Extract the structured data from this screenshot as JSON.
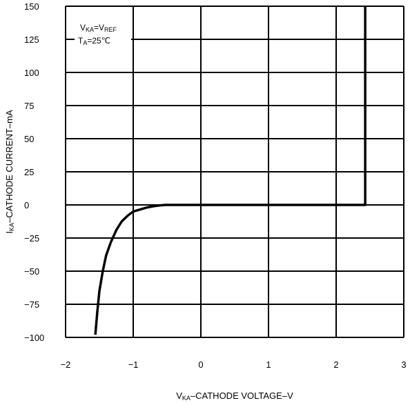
{
  "chart_data": {
    "type": "line",
    "title": "",
    "xlabel": {
      "main": "V",
      "sub": "KA",
      "rest": "–CATHODE VOLTAGE–V"
    },
    "ylabel": {
      "main": "I",
      "sub": "KA",
      "rest": "–CATHODE CURRENT–mA"
    },
    "xlim": [
      -2,
      3
    ],
    "ylim": [
      -100,
      150
    ],
    "x_ticks": [
      -2,
      -1,
      0,
      1,
      2,
      3
    ],
    "x_tick_labels": [
      "−2",
      "−1",
      "0",
      "1",
      "2",
      "3"
    ],
    "y_ticks": [
      150,
      125,
      100,
      75,
      50,
      25,
      0,
      -25,
      -50,
      -75,
      -100
    ],
    "y_tick_labels": [
      "150",
      "125",
      "100",
      "75",
      "50",
      "25",
      "0",
      "−25",
      "−50",
      "−75",
      "−100"
    ],
    "grid": true,
    "annotations": [
      {
        "parts": [
          {
            "t": "V",
            "sub": false
          },
          {
            "t": "KA",
            "sub": true
          },
          {
            "t": "=V",
            "sub": false
          },
          {
            "t": "REF",
            "sub": true
          }
        ]
      },
      {
        "parts": [
          {
            "t": "T",
            "sub": false
          },
          {
            "t": "A",
            "sub": true
          },
          {
            "t": "=25℃",
            "sub": false
          }
        ]
      }
    ],
    "series": [
      {
        "x": [
          -1.56,
          -1.53,
          -1.5,
          -1.45,
          -1.4,
          -1.33,
          -1.25,
          -1.17,
          -1.08,
          -1.0,
          -0.9,
          -0.8,
          -0.7,
          -0.6,
          -0.52,
          -0.44,
          2.43,
          2.43
        ],
        "y": [
          -98,
          -80,
          -65,
          -50,
          -38,
          -28,
          -19,
          -12.5,
          -8,
          -5,
          -3.5,
          -2,
          -1,
          -0.3,
          0,
          0,
          0,
          150
        ]
      }
    ]
  }
}
